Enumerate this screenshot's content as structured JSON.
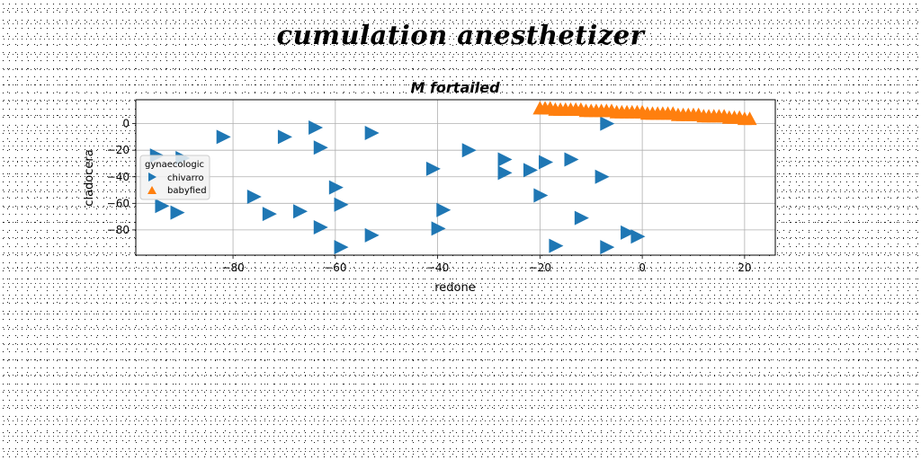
{
  "chart_data": {
    "type": "scatter",
    "suptitle": "cumulation anesthetizer",
    "title": "M fortailed",
    "xlabel": "redone",
    "ylabel": "cladocera",
    "xlim": [
      -99,
      26
    ],
    "ylim": [
      -99,
      18
    ],
    "xticks": [
      -80,
      -60,
      -40,
      -20,
      0,
      20
    ],
    "yticks": [
      0,
      -20,
      -40,
      -60,
      -80
    ],
    "grid": true,
    "legend": {
      "title": "gynaecologic",
      "placement": "center-left"
    },
    "colors": {
      "chivarro": "#1f77b4",
      "babyfied": "#ff7f0e"
    },
    "series": [
      {
        "name": "chivarro",
        "marker": "triangle-right",
        "points": [
          [
            -82,
            -10
          ],
          [
            -70,
            -10
          ],
          [
            -64,
            -3
          ],
          [
            -53,
            -7
          ],
          [
            -63,
            -18
          ],
          [
            -95,
            -24
          ],
          [
            -90,
            -26
          ],
          [
            -34,
            -20
          ],
          [
            -27,
            -27
          ],
          [
            -19,
            -29
          ],
          [
            -14,
            -27
          ],
          [
            -7,
            0
          ],
          [
            -41,
            -34
          ],
          [
            -27,
            -37
          ],
          [
            -22,
            -35
          ],
          [
            -8,
            -40
          ],
          [
            -60,
            -48
          ],
          [
            -76,
            -55
          ],
          [
            -20,
            -54
          ],
          [
            -59,
            -61
          ],
          [
            -94,
            -62
          ],
          [
            -91,
            -67
          ],
          [
            -73,
            -68
          ],
          [
            -67,
            -66
          ],
          [
            -39,
            -65
          ],
          [
            -12,
            -71
          ],
          [
            -63,
            -78
          ],
          [
            -40,
            -79
          ],
          [
            -53,
            -84
          ],
          [
            -59,
            -93
          ],
          [
            -17,
            -92
          ],
          [
            -7,
            -93
          ],
          [
            -3,
            -82
          ],
          [
            -1,
            -85
          ]
        ]
      },
      {
        "name": "babyfied",
        "marker": "triangle-up",
        "points": [
          [
            -20,
            11
          ],
          [
            -19,
            11
          ],
          [
            -18,
            11
          ],
          [
            -17,
            10
          ],
          [
            -16,
            10
          ],
          [
            -15,
            10
          ],
          [
            -14,
            10
          ],
          [
            -13,
            10
          ],
          [
            -12,
            10
          ],
          [
            -11,
            9
          ],
          [
            -10,
            9
          ],
          [
            -9,
            9
          ],
          [
            -8,
            9
          ],
          [
            -7,
            9
          ],
          [
            -6,
            9
          ],
          [
            -5,
            8
          ],
          [
            -4,
            8
          ],
          [
            -3,
            8
          ],
          [
            -2,
            8
          ],
          [
            -1,
            8
          ],
          [
            0,
            8
          ],
          [
            1,
            7
          ],
          [
            2,
            7
          ],
          [
            3,
            7
          ],
          [
            4,
            7
          ],
          [
            5,
            7
          ],
          [
            6,
            7
          ],
          [
            7,
            6
          ],
          [
            8,
            6
          ],
          [
            9,
            6
          ],
          [
            10,
            6
          ],
          [
            11,
            6
          ],
          [
            12,
            5
          ],
          [
            13,
            5
          ],
          [
            14,
            5
          ],
          [
            15,
            5
          ],
          [
            16,
            5
          ],
          [
            17,
            4
          ],
          [
            18,
            4
          ],
          [
            19,
            4
          ],
          [
            20,
            3
          ],
          [
            21,
            3
          ]
        ]
      }
    ]
  }
}
